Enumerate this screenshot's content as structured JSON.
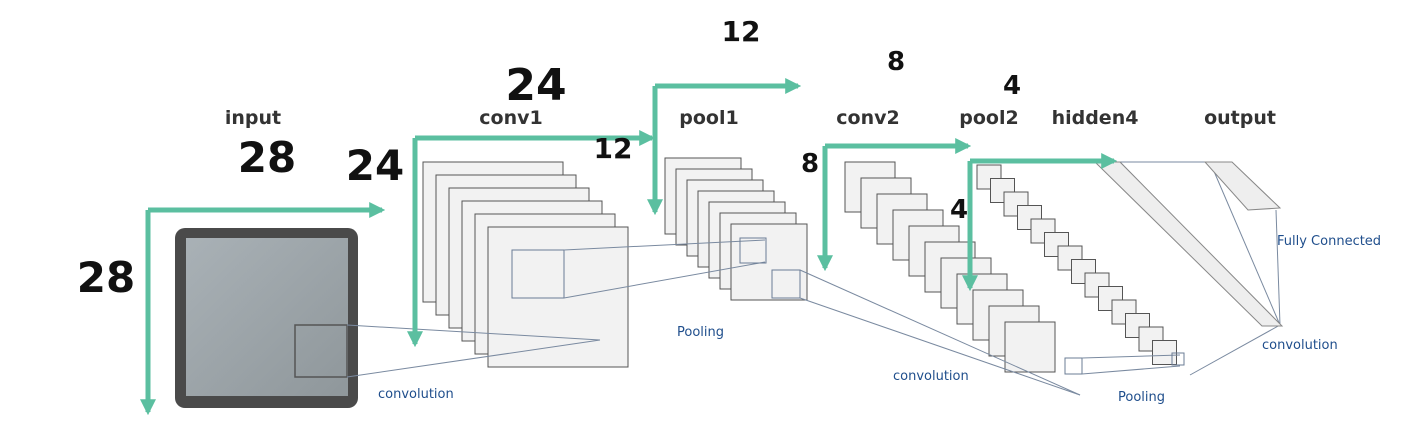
{
  "layers": {
    "input": "input",
    "conv1": "conv1",
    "pool1": "pool1",
    "conv2": "conv2",
    "pool2": "pool2",
    "hidden4": "hidden4",
    "output": "output"
  },
  "dims": {
    "input_w": "28",
    "input_h": "28",
    "conv1_w": "24",
    "conv1_h": "24",
    "pool1_w": "12",
    "pool1_h": "12",
    "conv2_w": "8",
    "conv2_h": "8",
    "pool2_w": "4",
    "pool2_h": "4"
  },
  "ops": {
    "conv_a": "convolution",
    "pool_a": "Pooling",
    "conv_b": "convolution",
    "pool_b": "Pooling",
    "fc": "Fully Connected",
    "conv_c": "convolution"
  },
  "colors": {
    "arrow": "#5bbfa0",
    "op_text": "#1f4e8c",
    "map_fill": "#f2f2f2",
    "map_stroke": "#555555"
  }
}
